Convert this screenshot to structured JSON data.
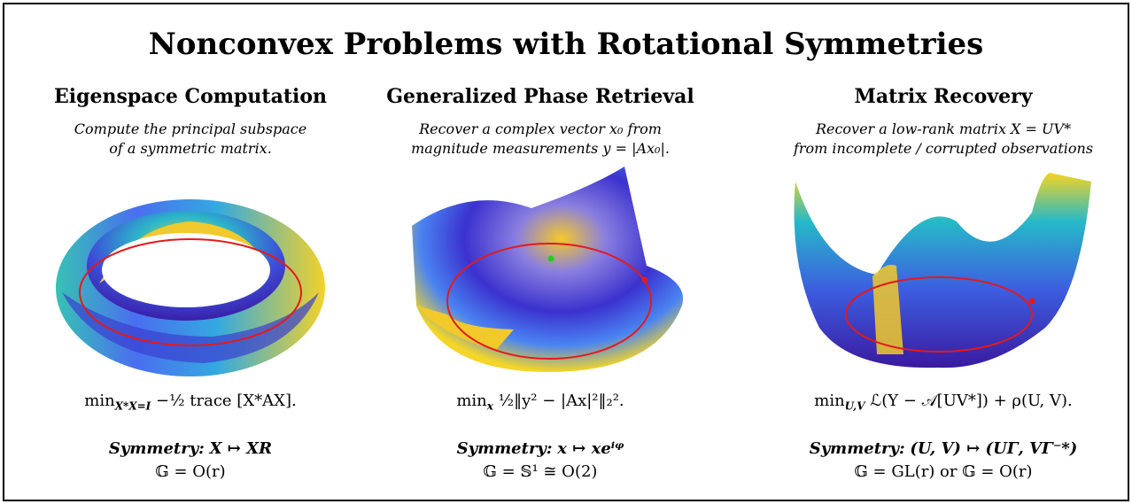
{
  "title": "Nonconvex Problems with Rotational Symmetries",
  "panels": [
    {
      "heading": "Eigenspace Computation",
      "description": [
        "Compute the principal subspace",
        "of a symmetric matrix."
      ],
      "objective": {
        "op": "min",
        "sub": "X*X=I",
        "expr": " −½ trace [X*AX]."
      },
      "symmetry_label": "Symmetry:",
      "symmetry": "X ↦ XR",
      "group": "𝔾 = O(r)"
    },
    {
      "heading": "Generalized Phase Retrieval",
      "description": [
        "Recover a complex vector x₀ from",
        "magnitude measurements y = |Ax₀|."
      ],
      "objective": {
        "op": "min",
        "sub": "x",
        "expr": " ½‖y² − |Ax|²‖₂²."
      },
      "symmetry_label": "Symmetry:",
      "symmetry": "x ↦ xeⁱᵠ",
      "group": "𝔾 = 𝕊¹ ≅ O(2)"
    },
    {
      "heading": "Matrix Recovery",
      "description": [
        "Recover a low-rank matrix X = UV*",
        "from incomplete / corrupted observations"
      ],
      "objective": {
        "op": "min",
        "sub": "U,V",
        "expr": " ℒ(Y − 𝒜[UV*])  +  ρ(U, V)."
      },
      "symmetry_label": "Symmetry:",
      "symmetry": "(U, V) ↦ (UΓ, VΓ⁻*)",
      "group": "𝔾 = GL(r) or 𝔾 = O(r)"
    }
  ]
}
